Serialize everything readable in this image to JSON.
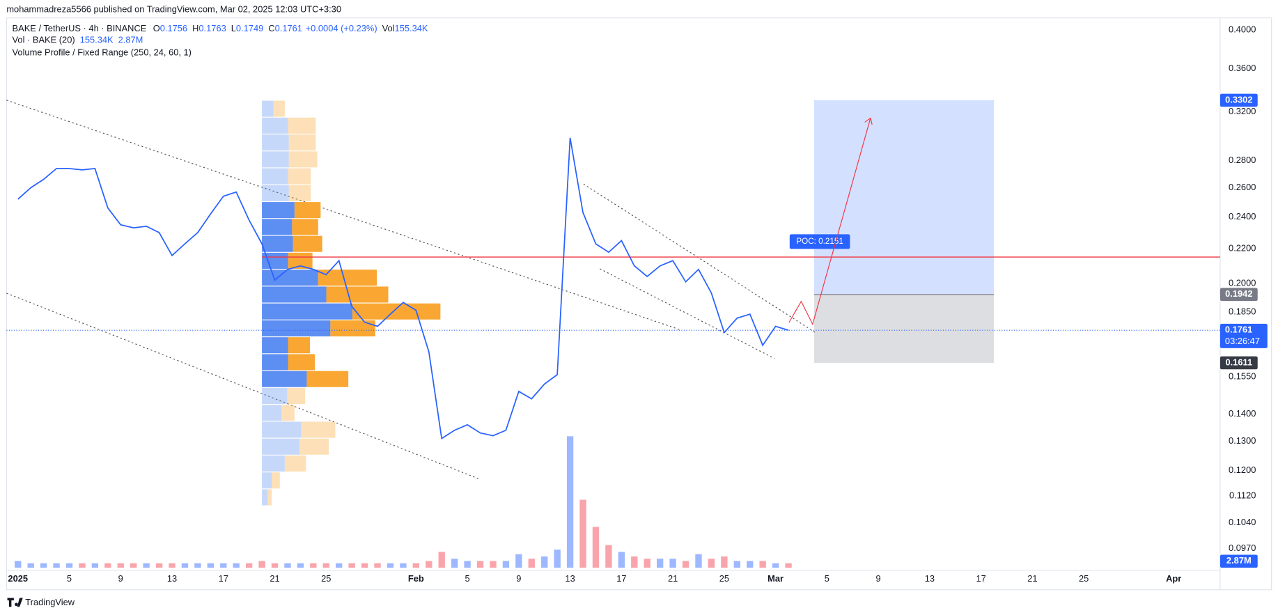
{
  "header": {
    "attribution": "mohammadreza5566 published on TradingView.com, Mar 02, 2025 12:03 UTC+3:30",
    "symbol": "BAKE / TetherUS · 4h · BINANCE",
    "ohlc": [
      {
        "label": "O",
        "value": "0.1756"
      },
      {
        "label": "H",
        "value": "0.1763"
      },
      {
        "label": "L",
        "value": "0.1749"
      },
      {
        "label": "C",
        "value": "0.1761"
      }
    ],
    "change": "+0.0004 (+0.23%)",
    "vol_label": "Vol",
    "vol_value": "155.34K",
    "vol_indicator": "Vol · BAKE (20)",
    "vol_indicator_values": [
      "155.34K",
      "2.87M"
    ],
    "profile_indicator": "Volume Profile / Fixed Range (250, 24, 60, 1)"
  },
  "footer": {
    "brand": "TradingView"
  },
  "chart_data": {
    "type": "line",
    "log_scale": true,
    "color": "#2962ff",
    "x": [
      "2025-01-01",
      "2025-01-02",
      "2025-01-03",
      "2025-01-04",
      "2025-01-05",
      "2025-01-06",
      "2025-01-07",
      "2025-01-08",
      "2025-01-09",
      "2025-01-10",
      "2025-01-11",
      "2025-01-12",
      "2025-01-13",
      "2025-01-14",
      "2025-01-15",
      "2025-01-16",
      "2025-01-17",
      "2025-01-18",
      "2025-01-19",
      "2025-01-20",
      "2025-01-21",
      "2025-01-22",
      "2025-01-23",
      "2025-01-24",
      "2025-01-25",
      "2025-01-26",
      "2025-01-27",
      "2025-01-28",
      "2025-01-29",
      "2025-01-30",
      "2025-01-31",
      "2025-02-01",
      "2025-02-02",
      "2025-02-03",
      "2025-02-04",
      "2025-02-05",
      "2025-02-06",
      "2025-02-07",
      "2025-02-08",
      "2025-02-09",
      "2025-02-10",
      "2025-02-11",
      "2025-02-12",
      "2025-02-13",
      "2025-02-14",
      "2025-02-15",
      "2025-02-16",
      "2025-02-17",
      "2025-02-18",
      "2025-02-19",
      "2025-02-20",
      "2025-02-21",
      "2025-02-22",
      "2025-02-23",
      "2025-02-24",
      "2025-02-25",
      "2025-02-26",
      "2025-02-27",
      "2025-02-28",
      "2025-03-01",
      "2025-03-02"
    ],
    "values": [
      0.252,
      0.26,
      0.266,
      0.274,
      0.274,
      0.273,
      0.274,
      0.246,
      0.235,
      0.233,
      0.234,
      0.23,
      0.216,
      0.223,
      0.23,
      0.242,
      0.254,
      0.257,
      0.238,
      0.223,
      0.202,
      0.208,
      0.21,
      0.208,
      0.205,
      0.213,
      0.188,
      0.18,
      0.178,
      0.184,
      0.19,
      0.186,
      0.166,
      0.131,
      0.134,
      0.136,
      0.133,
      0.132,
      0.134,
      0.149,
      0.146,
      0.152,
      0.156,
      0.298,
      0.243,
      0.223,
      0.218,
      0.225,
      0.21,
      0.204,
      0.21,
      0.213,
      0.201,
      0.208,
      0.195,
      0.175,
      0.182,
      0.184,
      0.169,
      0.178,
      0.1761
    ],
    "volume": {
      "values": [
        3,
        2,
        2,
        2,
        2,
        2,
        2,
        2,
        2,
        2,
        2,
        2,
        2,
        2,
        2,
        2,
        2,
        2,
        2,
        3,
        2,
        2,
        2,
        2,
        2,
        2,
        2,
        2,
        2,
        2,
        2,
        2,
        3,
        7,
        4,
        3,
        3,
        3,
        3,
        6,
        4,
        5,
        8,
        58,
        30,
        18,
        10,
        7,
        5,
        4,
        4,
        4,
        3,
        6,
        4,
        5,
        3,
        3,
        3,
        2,
        2
      ],
      "y2lim": [
        0,
        60
      ]
    },
    "xlim": [
      "2025-01-01",
      "2025-04-01"
    ],
    "xticks": [
      {
        "value": "2025-01-01",
        "label": "2025"
      },
      {
        "value": "2025-01-05",
        "label": "5"
      },
      {
        "value": "2025-01-09",
        "label": "9"
      },
      {
        "value": "2025-01-13",
        "label": "13"
      },
      {
        "value": "2025-01-17",
        "label": "17"
      },
      {
        "value": "2025-01-21",
        "label": "21"
      },
      {
        "value": "2025-01-25",
        "label": "25"
      },
      {
        "value": "2025-02-01",
        "label": "Feb"
      },
      {
        "value": "2025-02-05",
        "label": "5"
      },
      {
        "value": "2025-02-09",
        "label": "9"
      },
      {
        "value": "2025-02-13",
        "label": "13"
      },
      {
        "value": "2025-02-17",
        "label": "17"
      },
      {
        "value": "2025-02-21",
        "label": "21"
      },
      {
        "value": "2025-02-25",
        "label": "25"
      },
      {
        "value": "2025-03-01",
        "label": "Mar"
      },
      {
        "value": "2025-03-05",
        "label": "5"
      },
      {
        "value": "2025-03-09",
        "label": "9"
      },
      {
        "value": "2025-03-13",
        "label": "13"
      },
      {
        "value": "2025-03-17",
        "label": "17"
      },
      {
        "value": "2025-03-21",
        "label": "21"
      },
      {
        "value": "2025-03-25",
        "label": "25"
      },
      {
        "value": "2025-04-01",
        "label": "Apr"
      }
    ],
    "ylim": [
      0.0914,
      0.4295
    ],
    "yticks": [
      {
        "value": 0.4,
        "label": "0.4000"
      },
      {
        "value": 0.36,
        "label": "0.3600"
      },
      {
        "value": 0.32,
        "label": "0.3200"
      },
      {
        "value": 0.28,
        "label": "0.2800"
      },
      {
        "value": 0.26,
        "label": "0.2600"
      },
      {
        "value": 0.24,
        "label": "0.2400"
      },
      {
        "value": 0.22,
        "label": "0.2200"
      },
      {
        "value": 0.2,
        "label": "0.2000"
      },
      {
        "value": 0.185,
        "label": "0.1850"
      },
      {
        "value": 0.155,
        "label": "0.1550"
      },
      {
        "value": 0.14,
        "label": "0.1400"
      },
      {
        "value": 0.13,
        "label": "0.1300"
      },
      {
        "value": 0.12,
        "label": "0.1200"
      },
      {
        "value": 0.112,
        "label": "0.1120"
      },
      {
        "value": 0.104,
        "label": "0.1040"
      },
      {
        "value": 0.097,
        "label": "0.0970"
      }
    ],
    "last_price": {
      "value": 0.1761,
      "countdown": "03:26:47"
    },
    "poc": {
      "value": 0.2151,
      "label": "POC: 0.2151"
    },
    "position": {
      "start": "2025-03-04",
      "end": "2025-03-18",
      "target": 0.3302,
      "entry": 0.1942,
      "stop": 0.1611
    },
    "volume_profile": {
      "start": "2025-01-20",
      "range": [
        0.109,
        0.3302
      ],
      "value_area": [
        7,
        17
      ],
      "colors": {
        "up": "#5d8ef2",
        "down": "#f9a732"
      },
      "rows": [
        [
          7,
          5
        ],
        [
          12,
          10
        ],
        [
          28,
          26
        ],
        [
          46,
          36
        ],
        [
          48,
          42
        ],
        [
          24,
          16
        ],
        [
          31,
          22
        ],
        [
          55,
          51
        ],
        [
          32,
          33
        ],
        [
          32,
          27
        ],
        [
          84,
          55
        ],
        [
          111,
          108
        ],
        [
          79,
          76
        ],
        [
          69,
          72
        ],
        [
          32,
          30
        ],
        [
          38,
          36
        ],
        [
          37,
          32
        ],
        [
          40,
          32
        ],
        [
          33,
          27
        ],
        [
          32,
          28
        ],
        [
          33,
          35
        ],
        [
          33,
          33
        ],
        [
          32,
          34
        ],
        [
          14,
          14
        ]
      ]
    }
  }
}
